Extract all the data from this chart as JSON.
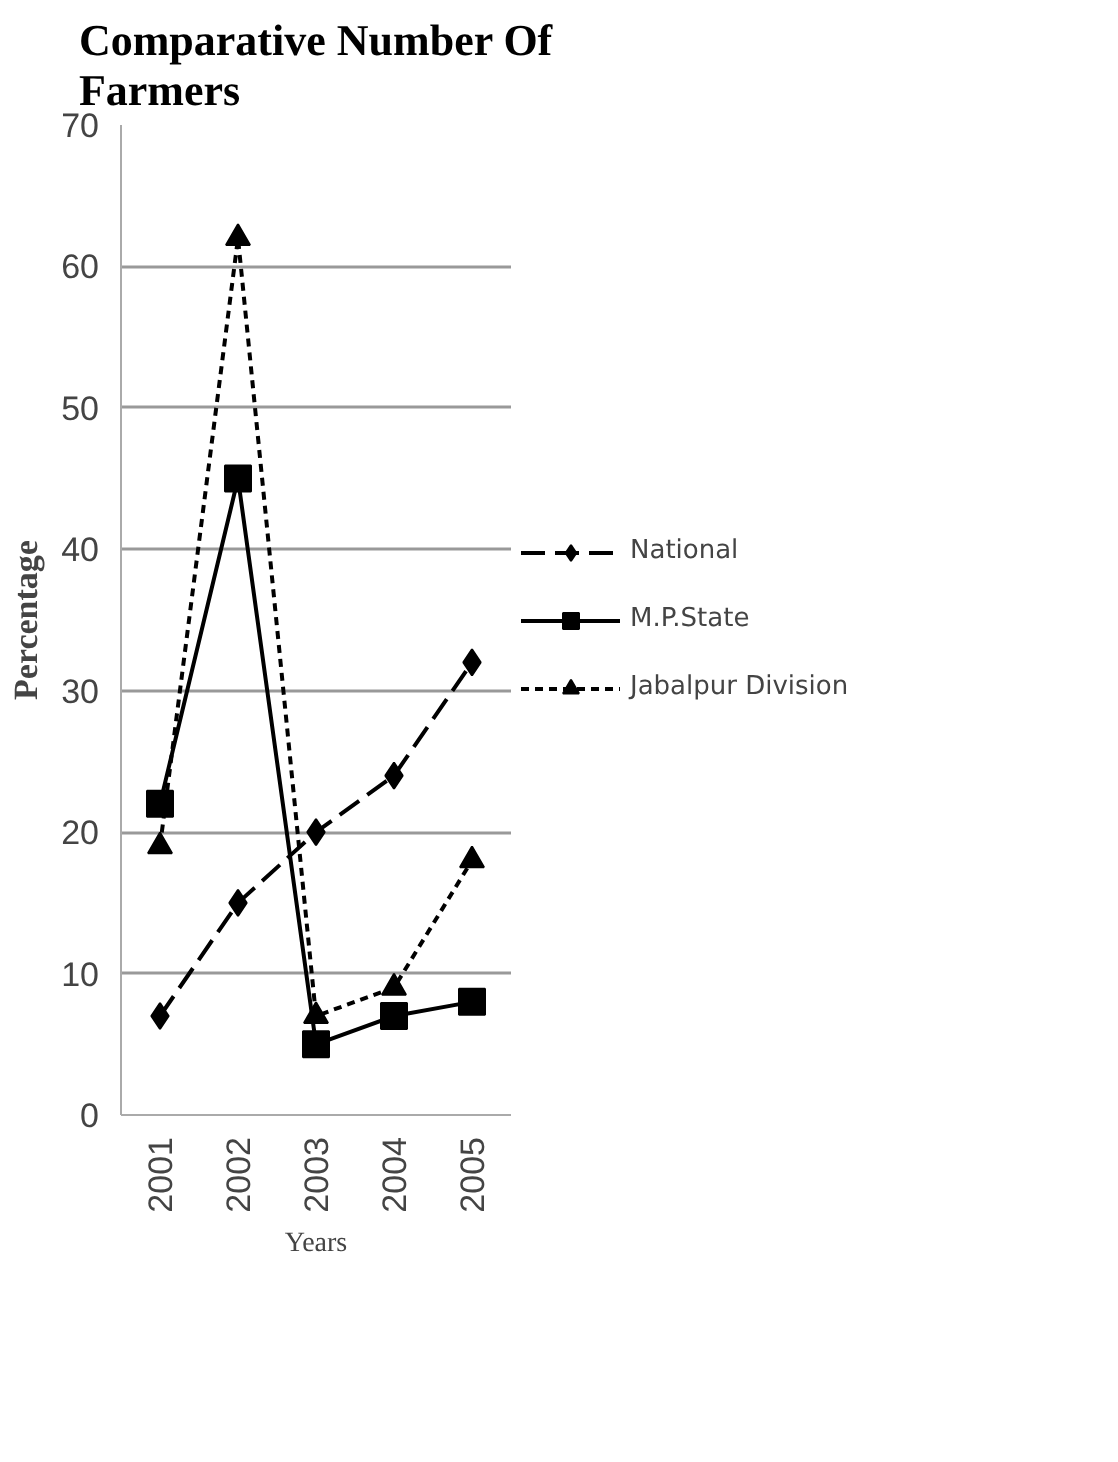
{
  "chart_data": {
    "type": "line",
    "title": "Comparative Number Of Farmers",
    "xlabel": "Years",
    "ylabel": "Percentage",
    "categories": [
      "2001",
      "2002",
      "2003",
      "2004",
      "2005"
    ],
    "series": [
      {
        "name": "National",
        "color": "#000000",
        "values": [
          7,
          15,
          20,
          24,
          32
        ],
        "marker": "diamond",
        "line_style": "dashed"
      },
      {
        "name": "M.P.State",
        "color": "#000000",
        "values": [
          22,
          45,
          5,
          7,
          8
        ],
        "marker": "square",
        "line_style": "solid"
      },
      {
        "name": "Jabalpur Division",
        "color": "#000000",
        "values": [
          19,
          62,
          7,
          9,
          18
        ],
        "marker": "triangle",
        "line_style": "dotted"
      }
    ],
    "ylim": [
      0,
      70
    ],
    "yticks": [
      0,
      10,
      20,
      30,
      40,
      50,
      60,
      70
    ],
    "grid": "y",
    "legend": "right"
  }
}
